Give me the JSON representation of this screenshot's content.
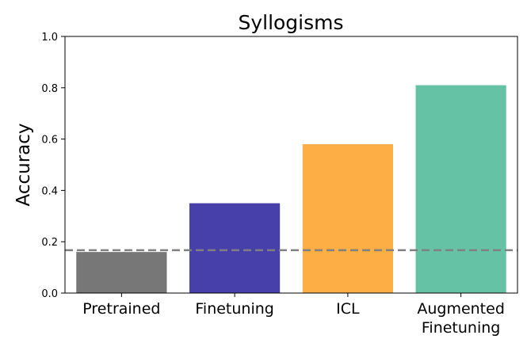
{
  "chart_data": {
    "type": "bar",
    "title": "Syllogisms",
    "ylabel": "Accuracy",
    "xlabel": "",
    "ylim": [
      0,
      1.0
    ],
    "yticks": [
      0.0,
      0.2,
      0.4,
      0.6,
      0.8,
      1.0
    ],
    "ytick_labels": [
      "0.0",
      "0.2",
      "0.4",
      "0.6",
      "0.8",
      "1.0"
    ],
    "categories": [
      [
        "Pretrained"
      ],
      [
        "Finetuning"
      ],
      [
        "ICL"
      ],
      [
        "Augmented",
        "Finetuning"
      ]
    ],
    "values": [
      0.16,
      0.35,
      0.58,
      0.81
    ],
    "colors": [
      "#777777",
      "#4740aa",
      "#fdae45",
      "#66c2a5"
    ],
    "baseline": {
      "value": 0.167,
      "style": "dashed",
      "color": "#808080"
    },
    "grid": false,
    "legend": "none"
  }
}
